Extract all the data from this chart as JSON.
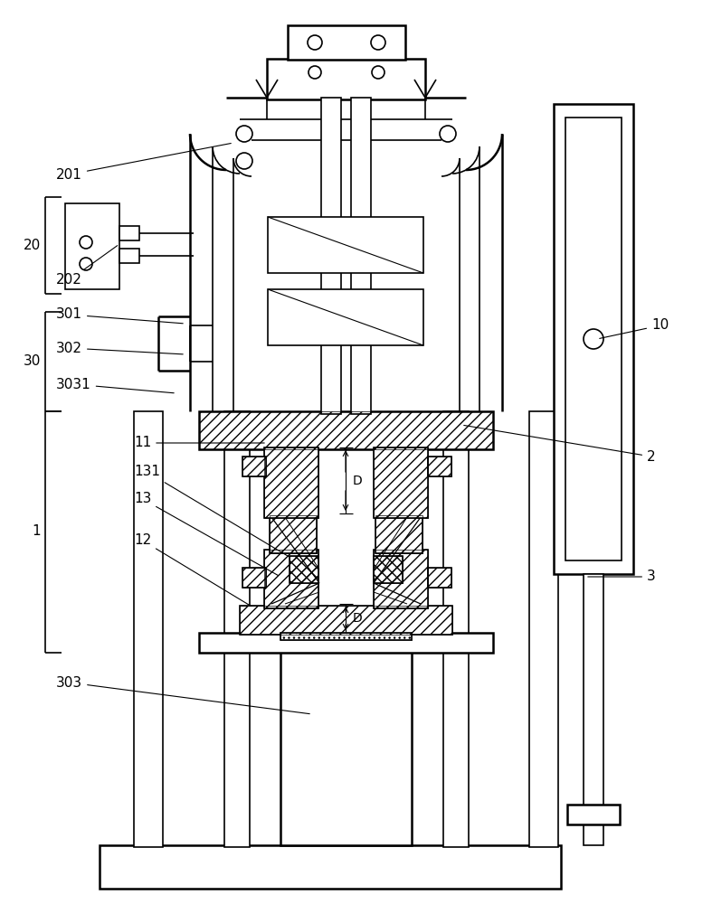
{
  "bg_color": "#ffffff",
  "line_color": "#000000",
  "lw": 1.2,
  "lw2": 1.8,
  "fs": 11,
  "fs_small": 10
}
